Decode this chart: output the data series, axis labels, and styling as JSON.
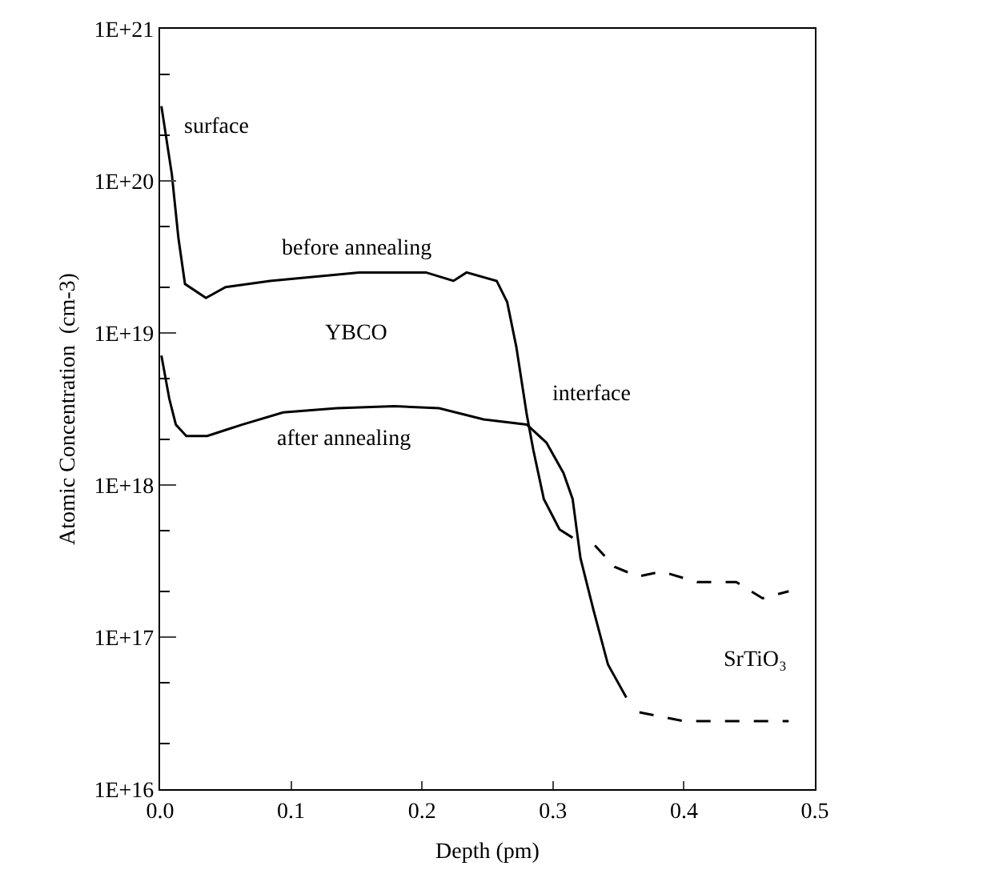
{
  "chart_data": {
    "type": "line",
    "xlabel": "Depth (pm)",
    "ylabel": "Atomic Concentration  (cm-3)",
    "log": "y",
    "grid": false,
    "marker": "none",
    "xlim": [
      0,
      0.5
    ],
    "xticks": [
      {
        "value": 0,
        "label": "0.0"
      },
      0.1,
      0.2,
      0.3,
      0.4,
      0.5
    ],
    "ylim": [
      1e+16,
      1e+21
    ],
    "yticks": [
      {
        "value": 1e+16,
        "label": "1E+16"
      },
      {
        "value": 1e+17,
        "label": "1E+17"
      },
      {
        "value": 1e+18,
        "label": "1E+18"
      },
      {
        "value": 1e+19,
        "label": "1E+19"
      },
      {
        "value": 1e+20,
        "label": "1E+20"
      },
      {
        "value": 1e+21,
        "label": "1E+21"
      }
    ],
    "series": [
      {
        "color": "#000000",
        "line_style": "solid",
        "x": [
          0.001,
          0.009,
          0.014,
          0.019,
          0.035,
          0.05,
          0.084,
          0.152,
          0.203,
          0.224,
          0.234,
          0.257,
          0.265,
          0.272,
          0.28,
          0.285,
          0.293,
          0.305,
          0.315
        ],
        "values": [
          3.1e+20,
          1.1e+20,
          4.2e+19,
          2.1e+19,
          1.7e+19,
          2e+19,
          2.2e+19,
          2.5e+19,
          2.5e+19,
          2.2e+19,
          2.5e+19,
          2.2e+19,
          1.6e+19,
          8.1e+18,
          2.9e+18,
          1.7e+18,
          8.1e+17,
          5.1e+17,
          4.5e+17
        ]
      },
      {
        "color": "#000000",
        "line_style": "solid",
        "x": [
          0.001,
          0.007,
          0.012,
          0.02,
          0.036,
          0.05,
          0.063,
          0.094,
          0.135,
          0.179,
          0.213,
          0.247,
          0.28,
          0.295,
          0.308,
          0.315,
          0.321,
          0.331,
          0.342,
          0.356
        ],
        "values": [
          7.1e+18,
          3.7e+18,
          2.5e+18,
          2.1e+18,
          2.1e+18,
          2.3e+18,
          2.5e+18,
          3e+18,
          3.2e+18,
          3.3e+18,
          3.2e+18,
          2.7e+18,
          2.5e+18,
          1.9e+18,
          1.2e+18,
          8.1e+17,
          3.3e+17,
          1.5e+17,
          6.6e+16,
          4e+16
        ]
      },
      {
        "color": "#000000",
        "line_style": "dashed",
        "x": [
          0.332,
          0.347,
          0.365,
          0.383,
          0.41,
          0.44,
          0.46,
          0.48
        ],
        "values": [
          4e+17,
          2.9e+17,
          2.5e+17,
          2.7e+17,
          2.3e+17,
          2.3e+17,
          1.8e+17,
          2e+17
        ]
      },
      {
        "color": "#000000",
        "line_style": "dashed",
        "x": [
          0.366,
          0.4,
          0.48
        ],
        "values": [
          3.2e+16,
          2.8e+16,
          2.8e+16
        ]
      }
    ],
    "annotations": [
      "surface",
      "before annealing",
      "YBCO",
      "after annealing",
      "interface",
      "SrTiO₃"
    ]
  }
}
